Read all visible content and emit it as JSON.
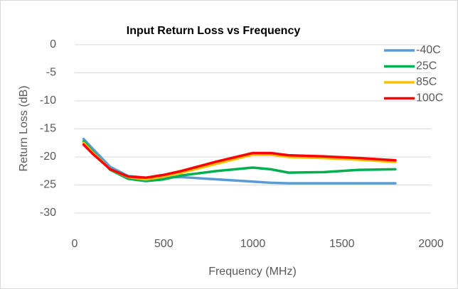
{
  "chart_data": {
    "type": "line",
    "title": "Input Return Loss vs Frequency",
    "xlabel": "Frequency (MHz)",
    "ylabel": "Return Loss (dB)",
    "x": [
      50,
      100,
      200,
      300,
      400,
      500,
      600,
      800,
      1000,
      1100,
      1200,
      1400,
      1600,
      1800
    ],
    "series": [
      {
        "name": "-40C",
        "color": "#5b9bd5",
        "values": [
          -16.8,
          -18.5,
          -21.8,
          -23.4,
          -23.7,
          -23.6,
          -23.6,
          -24.0,
          -24.4,
          -24.6,
          -24.7,
          -24.7,
          -24.7,
          -24.7
        ]
      },
      {
        "name": "25C",
        "color": "#00b050",
        "values": [
          -17.2,
          -19.0,
          -22.3,
          -23.9,
          -24.3,
          -24.0,
          -23.3,
          -22.5,
          -21.9,
          -22.2,
          -22.8,
          -22.7,
          -22.3,
          -22.2
        ]
      },
      {
        "name": "85C",
        "color": "#ffc000",
        "values": [
          -17.5,
          -19.2,
          -22.2,
          -23.6,
          -24.0,
          -23.5,
          -22.8,
          -21.2,
          -19.6,
          -19.6,
          -20.0,
          -20.2,
          -20.5,
          -20.9
        ]
      },
      {
        "name": "100C",
        "color": "#ff0000",
        "values": [
          -17.8,
          -19.4,
          -22.2,
          -23.5,
          -23.7,
          -23.2,
          -22.5,
          -20.8,
          -19.3,
          -19.3,
          -19.7,
          -19.9,
          -20.2,
          -20.6
        ]
      }
    ],
    "xlim": [
      0,
      2000
    ],
    "xticks": [
      0,
      500,
      1000,
      1500,
      2000
    ],
    "ylim": [
      -30,
      0
    ],
    "yticks": [
      -30,
      -25,
      -20,
      -15,
      -10,
      -5,
      0
    ],
    "grid": true,
    "legend": "top-right"
  }
}
